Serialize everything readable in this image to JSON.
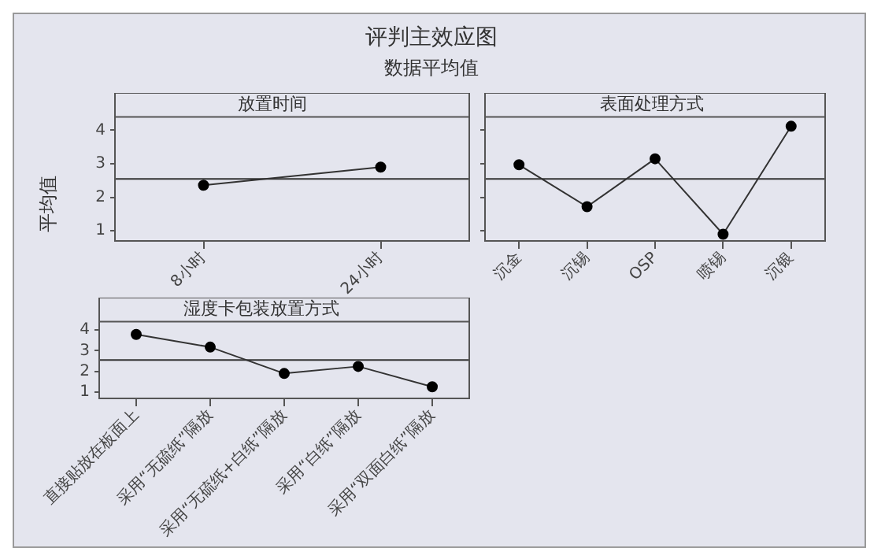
{
  "chart_data": [
    {
      "type": "other",
      "title": "评判主效应图",
      "subtitle": "数据平均值"
    },
    {
      "type": "line",
      "title": "放置时间",
      "ylabel": "平均值",
      "categories": [
        "8小时",
        "24小时"
      ],
      "values": [
        2.36,
        2.9
      ],
      "color": "#333333",
      "marker": "circle",
      "ylim": [
        0.7,
        4.4
      ],
      "yticks": [
        1,
        2,
        3,
        4
      ],
      "ref_lines": [
        {
          "axis": "y",
          "value": 2.55
        }
      ]
    },
    {
      "type": "line",
      "title": "表面处理方式",
      "categories": [
        "沉金",
        "沉锡",
        "OSP",
        "喷锡",
        "沉银"
      ],
      "values": [
        2.97,
        1.72,
        3.15,
        0.9,
        4.12
      ],
      "color": "#333333",
      "marker": "circle",
      "ylim": [
        0.7,
        4.4
      ],
      "yticks": [
        1,
        2,
        3,
        4
      ],
      "tick_labels": "x",
      "ref_lines": [
        {
          "axis": "y",
          "value": 2.55
        }
      ]
    },
    {
      "type": "line",
      "title": "湿度卡包装放置方式",
      "categories": [
        "直接贴放在板面上",
        "采用“无硫纸”隔放",
        "采用“无硫纸+白纸”隔放",
        "采用“白纸”隔放",
        "采用“双面白纸”隔放"
      ],
      "values": [
        3.78,
        3.17,
        1.9,
        2.24,
        1.26
      ],
      "color": "#333333",
      "marker": "circle",
      "ylim": [
        0.7,
        4.4
      ],
      "yticks": [
        1,
        2,
        3,
        4
      ],
      "ref_lines": [
        {
          "axis": "y",
          "value": 2.55
        }
      ]
    }
  ]
}
